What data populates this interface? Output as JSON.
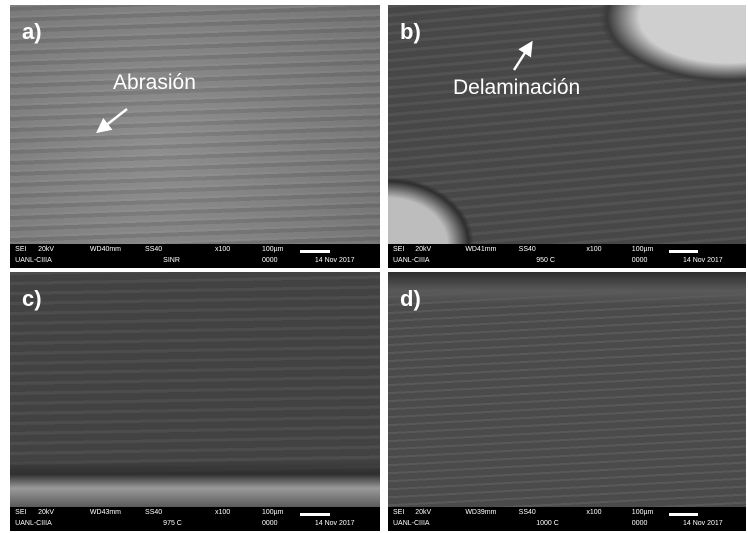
{
  "panels": [
    {
      "label": "a)",
      "annotation": "Abrasión",
      "info": {
        "row1": [
          "SEI",
          "20kV",
          "WD40mm",
          "SS40",
          "x100",
          "100µm"
        ],
        "row2": [
          "UANL-CIIIA",
          "SINR",
          "0000",
          "14 Nov 2017"
        ]
      }
    },
    {
      "label": "b)",
      "annotation": "Delaminación",
      "info": {
        "row1": [
          "SEI",
          "20kV",
          "WD41mm",
          "SS40",
          "x100",
          "100µm"
        ],
        "row2": [
          "UANL-CIIIA",
          "950 C",
          "0000",
          "14 Nov 2017"
        ]
      }
    },
    {
      "label": "c)",
      "info": {
        "row1": [
          "SEI",
          "20kV",
          "WD43mm",
          "SS40",
          "x100",
          "100µm"
        ],
        "row2": [
          "UANL-CIIIA",
          "975 C",
          "0000",
          "14 Nov 2017"
        ]
      }
    },
    {
      "label": "d)",
      "info": {
        "row1": [
          "SEI",
          "20kV",
          "WD39mm",
          "SS40",
          "x100",
          "100µm"
        ],
        "row2": [
          "UANL-CIIIA",
          "1000 C",
          "0000",
          "14 Nov 2017"
        ]
      }
    }
  ]
}
